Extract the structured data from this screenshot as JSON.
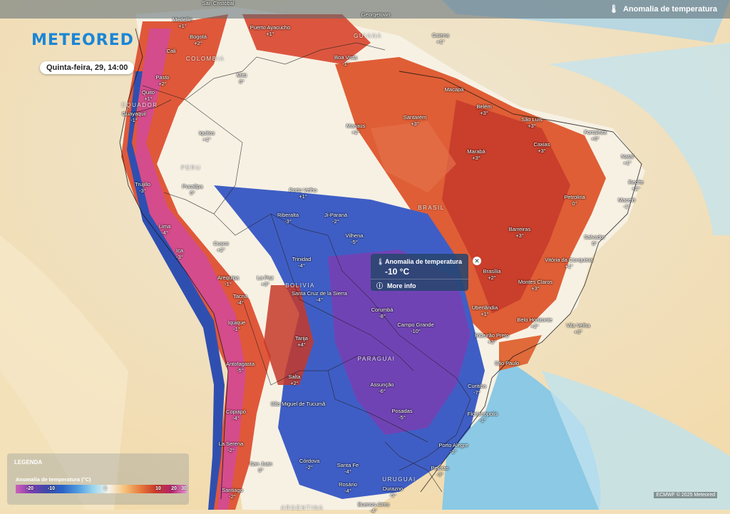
{
  "header": {
    "layer_title": "Anomalia de temperatura"
  },
  "brand": {
    "logo": "METEORED"
  },
  "date": "Quinta-feira, 29, 14:00",
  "countries": [
    "COLOMBIA",
    "GUIANA",
    "EQUADOR",
    "PERU",
    "BRASIL",
    "BOLIVIA",
    "PARAGUAI",
    "URUGUAI",
    "ARGENTINA"
  ],
  "cities": [
    {
      "name": "San Cristóbal",
      "value": ""
    },
    {
      "name": "Medellin",
      "value": "+1°"
    },
    {
      "name": "Bogotá",
      "value": "+2°"
    },
    {
      "name": "Puerto Ayacucho",
      "value": "+1°"
    },
    {
      "name": "Georgetown",
      "value": ""
    },
    {
      "name": "Caiena",
      "value": "+1°"
    },
    {
      "name": "Cali",
      "value": ""
    },
    {
      "name": "Boa Vista",
      "value": "-1°"
    },
    {
      "name": "Mitú",
      "value": "0°"
    },
    {
      "name": "Pasto",
      "value": "+2°"
    },
    {
      "name": "Quito",
      "value": "+1°"
    },
    {
      "name": "Guayaquil",
      "value": "-1°"
    },
    {
      "name": "Macapá",
      "value": ""
    },
    {
      "name": "Belém",
      "value": "+3°"
    },
    {
      "name": "São Luís",
      "value": "+3°"
    },
    {
      "name": "Santarém",
      "value": "+3°"
    },
    {
      "name": "Manaus",
      "value": "+2°"
    },
    {
      "name": "Iquitos",
      "value": "+1°"
    },
    {
      "name": "Fortaleza",
      "value": "+0°"
    },
    {
      "name": "Caxias",
      "value": "+3°"
    },
    {
      "name": "Marabá",
      "value": "+3°"
    },
    {
      "name": "Natal",
      "value": "+1°"
    },
    {
      "name": "Recife",
      "value": "+2°"
    },
    {
      "name": "Maceió",
      "value": "-1°"
    },
    {
      "name": "Trujillo",
      "value": "-3°"
    },
    {
      "name": "Pucallpa",
      "value": "0°"
    },
    {
      "name": "Porto Velho",
      "value": "+1°"
    },
    {
      "name": "Petrolina",
      "value": "0°"
    },
    {
      "name": "Riberalta",
      "value": "-3°"
    },
    {
      "name": "Ji-Paraná",
      "value": "-2°"
    },
    {
      "name": "Vilhena",
      "value": "-5°"
    },
    {
      "name": "Barreiras",
      "value": "+3°"
    },
    {
      "name": "Salvador",
      "value": "0°"
    },
    {
      "name": "Lima",
      "value": "-4°"
    },
    {
      "name": "Cusco",
      "value": "+2°"
    },
    {
      "name": "Ica",
      "value": "-3°"
    },
    {
      "name": "Trinidad",
      "value": "-4°"
    },
    {
      "name": "Vitória da Conquista",
      "value": "+1°"
    },
    {
      "name": "Brasília",
      "value": "+2°"
    },
    {
      "name": "Montes Claros",
      "value": "+3°"
    },
    {
      "name": "Arequipa",
      "value": "-1°"
    },
    {
      "name": "La Paz",
      "value": "+3°"
    },
    {
      "name": "Santa Cruz de la Sierra",
      "value": "-4°"
    },
    {
      "name": "Tacna",
      "value": "-4°"
    },
    {
      "name": "Uberlândia",
      "value": "+1°"
    },
    {
      "name": "Corumbá",
      "value": "-8°"
    },
    {
      "name": "Campo Grande",
      "value": "-10°"
    },
    {
      "name": "Belo Horizonte",
      "value": "+2°"
    },
    {
      "name": "Vila Velha",
      "value": "+3°"
    },
    {
      "name": "Iquique",
      "value": "-1°"
    },
    {
      "name": "Ribeirão Preto",
      "value": "+3°"
    },
    {
      "name": "Tarija",
      "value": "+4°"
    },
    {
      "name": "São Paulo",
      "value": ""
    },
    {
      "name": "Antofagasta",
      "value": "-5°"
    },
    {
      "name": "Salta",
      "value": "+2°"
    },
    {
      "name": "Assunção",
      "value": "-6°"
    },
    {
      "name": "Curitiba",
      "value": "-7°"
    },
    {
      "name": "São Miguel de Tucumã",
      "value": ""
    },
    {
      "name": "Posadas",
      "value": "-5°"
    },
    {
      "name": "Copiapó",
      "value": "-4°"
    },
    {
      "name": "Florianópolis",
      "value": "-1°"
    },
    {
      "name": "Porto Alegre",
      "value": "-2°"
    },
    {
      "name": "La Serena",
      "value": "-2°"
    },
    {
      "name": "Córdova",
      "value": "-2°"
    },
    {
      "name": "San Juan",
      "value": "0°"
    },
    {
      "name": "Santa Fe",
      "value": "-4°"
    },
    {
      "name": "Rosário",
      "value": "-4°"
    },
    {
      "name": "Pelotas",
      "value": "-3°"
    },
    {
      "name": "Durazno",
      "value": "-5°"
    },
    {
      "name": "Santiago",
      "value": "-2°"
    },
    {
      "name": "Buenos Aires",
      "value": "-4°"
    }
  ],
  "popup": {
    "title": "Anomalia de temperatura",
    "value": "-10 °C",
    "more": "More info",
    "close": "✕"
  },
  "legend": {
    "title": "LEGENDA",
    "subtitle": "Anomalia de temperatura (°C)",
    "ticks": [
      "-20",
      "-10",
      "0",
      "10",
      "20",
      "30"
    ]
  },
  "credit": "ECMWF © 2025 Meteored",
  "colors": {
    "brand": "#1a86d6",
    "warm": "#d8452c",
    "cold": "#3a4fb0",
    "very_cold": "#7a3db0",
    "neutral": "#f6eedc"
  }
}
